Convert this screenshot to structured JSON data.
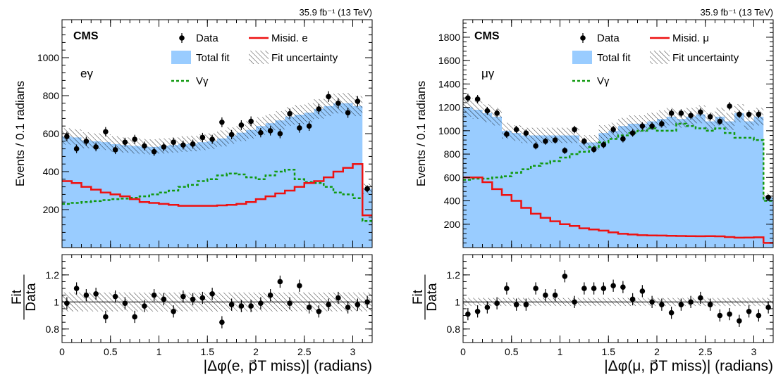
{
  "colors": {
    "fill": "#99ccff",
    "misid": "#ee1111",
    "vgamma": "#119911",
    "data": "#000000"
  },
  "chart_data": [
    {
      "type": "line",
      "lumi": "35.9 fb⁻¹ (13 TeV)",
      "experiment": "CMS",
      "channel": "eγ",
      "ylabel": "Events / 0.1 radians",
      "xlabel": "|Δφ(e, p⃗T miss)| (radians)",
      "ylim": [
        0,
        1200
      ],
      "yticks": [
        "200",
        "400",
        "600",
        "800",
        "1000"
      ],
      "xlim": [
        0,
        3.2
      ],
      "xticks": [
        "0",
        "0.5",
        "1",
        "1.5",
        "2",
        "2.5",
        "3"
      ],
      "legend": {
        "data": "Data",
        "misid": "Misid. e",
        "total": "Total fit",
        "unc": "Fit uncertainty",
        "vg": "Vγ"
      },
      "bin_edges": [
        0,
        0.1,
        0.2,
        0.3,
        0.4,
        0.5,
        0.6,
        0.7,
        0.8,
        0.9,
        1.0,
        1.1,
        1.2,
        1.3,
        1.4,
        1.5,
        1.6,
        1.7,
        1.8,
        1.9,
        2.0,
        2.1,
        2.2,
        2.3,
        2.4,
        2.5,
        2.6,
        2.7,
        2.8,
        2.9,
        3.0,
        3.1,
        3.2
      ],
      "series": [
        {
          "name": "Total fit",
          "values": [
            585,
            580,
            565,
            560,
            555,
            545,
            540,
            535,
            532,
            530,
            535,
            540,
            545,
            548,
            555,
            560,
            575,
            590,
            605,
            620,
            640,
            655,
            670,
            690,
            700,
            710,
            730,
            745,
            760,
            760,
            745,
            310
          ]
        },
        {
          "name": "Misid. e",
          "values": [
            350,
            340,
            320,
            305,
            290,
            280,
            270,
            255,
            240,
            235,
            230,
            225,
            220,
            220,
            220,
            220,
            222,
            225,
            230,
            240,
            255,
            270,
            285,
            300,
            320,
            340,
            350,
            370,
            400,
            420,
            440,
            170
          ]
        },
        {
          "name": "Vγ",
          "values": [
            230,
            235,
            240,
            245,
            250,
            255,
            258,
            262,
            270,
            280,
            290,
            300,
            320,
            330,
            350,
            360,
            380,
            390,
            385,
            370,
            360,
            380,
            400,
            410,
            360,
            345,
            340,
            320,
            290,
            280,
            260,
            140
          ]
        },
        {
          "name": "Data",
          "values": [
            585,
            520,
            560,
            530,
            610,
            515,
            555,
            570,
            535,
            505,
            530,
            555,
            540,
            545,
            580,
            570,
            660,
            595,
            645,
            665,
            605,
            615,
            600,
            705,
            630,
            640,
            730,
            795,
            760,
            710,
            770,
            310
          ]
        }
      ],
      "ratio": {
        "ylabel_num": "Fit",
        "ylabel_den": "Data",
        "ylim": [
          0.7,
          1.35
        ],
        "yticks": [
          "0.8",
          "1",
          "1.2"
        ],
        "band": [
          0.93,
          1.07
        ],
        "values": [
          0.99,
          1.1,
          1.05,
          1.06,
          0.89,
          1.04,
          0.99,
          0.89,
          0.97,
          1.05,
          1.02,
          0.93,
          1.04,
          1.02,
          1.03,
          1.06,
          0.85,
          0.98,
          0.97,
          0.97,
          0.99,
          1.05,
          1.15,
          0.99,
          1.12,
          0.96,
          0.93,
          0.98,
          1.03,
          0.96,
          0.98,
          1.0
        ]
      }
    },
    {
      "type": "line",
      "lumi": "35.9 fb⁻¹ (13 TeV)",
      "experiment": "CMS",
      "channel": "μγ",
      "ylabel": "Events / 0.1 radians",
      "xlabel": "|Δφ(μ, p⃗T miss)| (radians)",
      "ylim": [
        0,
        1950
      ],
      "yticks": [
        "200",
        "400",
        "600",
        "800",
        "1000",
        "1200",
        "1400",
        "1600",
        "1800"
      ],
      "xlim": [
        0,
        3.2
      ],
      "xticks": [
        "0",
        "0.5",
        "1",
        "1.5",
        "2",
        "2.5",
        "3"
      ],
      "legend": {
        "data": "Data",
        "misid": "Misid. μ",
        "total": "Total fit",
        "unc": "Fit uncertainty",
        "vg": "Vγ"
      },
      "bin_edges": [
        0,
        0.1,
        0.2,
        0.3,
        0.4,
        0.5,
        0.6,
        0.7,
        0.8,
        0.9,
        1.0,
        1.1,
        1.2,
        1.3,
        1.4,
        1.5,
        1.6,
        1.7,
        1.8,
        1.9,
        2.0,
        2.1,
        2.2,
        2.3,
        2.4,
        2.5,
        2.6,
        2.7,
        2.8,
        2.9,
        3.0,
        3.1,
        3.2
      ],
      "series": [
        {
          "name": "Total fit",
          "values": [
            1200,
            1180,
            1150,
            1120,
            1000,
            980,
            960,
            960,
            960,
            960,
            960,
            960,
            900,
            900,
            980,
            1000,
            1040,
            1060,
            1060,
            1080,
            1100,
            1120,
            1100,
            1120,
            1140,
            1080,
            1120,
            1080,
            1150,
            1080,
            1120,
            430
          ]
        },
        {
          "name": "Misid. μ",
          "values": [
            600,
            600,
            560,
            500,
            450,
            400,
            340,
            290,
            255,
            225,
            200,
            185,
            165,
            155,
            145,
            130,
            118,
            112,
            106,
            104,
            103,
            101,
            99,
            98,
            97,
            98,
            96,
            90,
            85,
            86,
            88,
            40
          ]
        },
        {
          "name": "Vγ",
          "values": [
            580,
            590,
            590,
            600,
            610,
            640,
            670,
            700,
            720,
            740,
            770,
            800,
            820,
            860,
            900,
            930,
            960,
            980,
            1000,
            1020,
            1000,
            1000,
            1060,
            1040,
            1020,
            1000,
            1020,
            980,
            940,
            940,
            920,
            400
          ]
        },
        {
          "name": "Data",
          "values": [
            1280,
            1270,
            1170,
            1150,
            970,
            1010,
            980,
            870,
            910,
            920,
            830,
            1010,
            910,
            840,
            880,
            1010,
            930,
            980,
            1040,
            1040,
            1060,
            1150,
            1150,
            1130,
            1160,
            1120,
            1080,
            1210,
            1140,
            1140,
            1140,
            430
          ]
        }
      ],
      "ratio": {
        "ylabel_num": "Fit",
        "ylabel_den": "Data",
        "ylim": [
          0.7,
          1.35
        ],
        "yticks": [
          "0.8",
          "1",
          "1.2"
        ],
        "band": [
          0.97,
          1.03
        ],
        "values": [
          0.91,
          0.93,
          0.96,
          0.99,
          1.1,
          0.98,
          0.98,
          1.1,
          1.05,
          1.05,
          1.19,
          1.0,
          1.1,
          1.1,
          1.1,
          1.12,
          1.11,
          1.02,
          1.08,
          1.0,
          0.98,
          0.92,
          0.98,
          1.0,
          1.03,
          0.98,
          0.9,
          0.91,
          0.86,
          0.93,
          0.9,
          0.96
        ]
      }
    }
  ]
}
